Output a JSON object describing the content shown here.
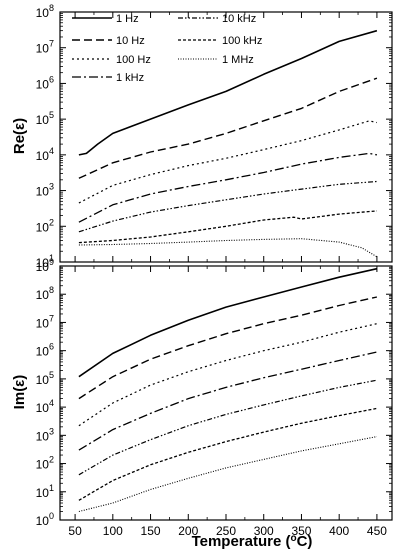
{
  "chart_data": [
    {
      "type": "line",
      "ylabel": "Re(ε)",
      "yscale": "log",
      "ylim_exp": [
        1,
        8
      ],
      "y_tick_labels": [
        {
          "base": "10",
          "exp": "1"
        },
        {
          "base": "10",
          "exp": "2"
        },
        {
          "base": "10",
          "exp": "3"
        },
        {
          "base": "10",
          "exp": "4"
        },
        {
          "base": "10",
          "exp": "5"
        },
        {
          "base": "10",
          "exp": "6"
        },
        {
          "base": "10",
          "exp": "7"
        },
        {
          "base": "10",
          "exp": "8"
        }
      ],
      "xlim": [
        30,
        470
      ],
      "grid": false,
      "legend": "top-left, two columns",
      "series": [
        {
          "name": "1 Hz",
          "dash": "solid",
          "width": 1.6,
          "x": [
            55,
            65,
            80,
            100,
            150,
            200,
            250,
            300,
            350,
            400,
            450
          ],
          "y": [
            10000,
            11000,
            20000,
            40000,
            100000,
            250000,
            600000,
            1800000,
            5000000,
            15000000,
            30000000
          ]
        },
        {
          "name": "10 Hz",
          "dash": "8,4",
          "width": 1.4,
          "x": [
            55,
            100,
            150,
            200,
            250,
            300,
            350,
            400,
            450
          ],
          "y": [
            2200,
            6000,
            12000,
            20000,
            40000,
            90000,
            200000,
            600000,
            1400000
          ]
        },
        {
          "name": "100 Hz",
          "dash": "2,3",
          "width": 1.2,
          "x": [
            55,
            100,
            150,
            200,
            250,
            300,
            350,
            400,
            440,
            450
          ],
          "y": [
            450,
            1400,
            2800,
            5000,
            8000,
            14000,
            25000,
            50000,
            90000,
            80000
          ]
        },
        {
          "name": "1 kHz",
          "dash": "9,3,2,3",
          "width": 1.3,
          "x": [
            55,
            100,
            150,
            200,
            250,
            300,
            350,
            400,
            440,
            450
          ],
          "y": [
            130,
            400,
            800,
            1300,
            2000,
            3200,
            5500,
            8500,
            11000,
            10000
          ]
        },
        {
          "name": "10 kHz",
          "dash": "5,2,1.5,2,1.5,2",
          "width": 1.2,
          "x": [
            55,
            100,
            150,
            200,
            250,
            300,
            350,
            400,
            450
          ],
          "y": [
            70,
            140,
            250,
            380,
            550,
            800,
            1100,
            1500,
            1800
          ]
        },
        {
          "name": "100 kHz",
          "dash": "3,2",
          "width": 1.3,
          "x": [
            55,
            100,
            150,
            200,
            250,
            300,
            340,
            350,
            400,
            450
          ],
          "y": [
            35,
            40,
            50,
            70,
            100,
            150,
            180,
            160,
            220,
            270
          ]
        },
        {
          "name": "1 MHz",
          "dash": "1,1.5",
          "width": 1.1,
          "x": [
            55,
            100,
            150,
            200,
            250,
            300,
            350,
            400,
            430,
            450
          ],
          "y": [
            30,
            31,
            33,
            36,
            40,
            43,
            45,
            36,
            25,
            14
          ]
        }
      ]
    },
    {
      "type": "line",
      "ylabel": "Im(ε)",
      "yscale": "log",
      "ylim_exp": [
        0,
        9
      ],
      "y_tick_labels": [
        {
          "base": "10",
          "exp": "0"
        },
        {
          "base": "10",
          "exp": "1"
        },
        {
          "base": "10",
          "exp": "2"
        },
        {
          "base": "10",
          "exp": "3"
        },
        {
          "base": "10",
          "exp": "4"
        },
        {
          "base": "10",
          "exp": "5"
        },
        {
          "base": "10",
          "exp": "6"
        },
        {
          "base": "10",
          "exp": "7"
        },
        {
          "base": "10",
          "exp": "8"
        },
        {
          "base": "10",
          "exp": "9"
        }
      ],
      "xlabel": {
        "text": "Temperature (",
        "sup": "o",
        "unit": "C)"
      },
      "x_ticks": [
        50,
        100,
        150,
        200,
        250,
        300,
        350,
        400,
        450
      ],
      "x_tick_labels": [
        "50",
        "100",
        "150",
        "200",
        "250",
        "300",
        "350",
        "400",
        "450"
      ],
      "xlim": [
        30,
        470
      ],
      "grid": false,
      "series": [
        {
          "name": "1 Hz",
          "dash": "solid",
          "width": 1.6,
          "x": [
            55,
            100,
            150,
            200,
            250,
            300,
            350,
            400,
            450
          ],
          "y": [
            120000,
            800000,
            3500000,
            12000000,
            35000000,
            80000000,
            180000000,
            400000000,
            800000000
          ]
        },
        {
          "name": "10 Hz",
          "dash": "8,4",
          "width": 1.4,
          "x": [
            55,
            100,
            150,
            200,
            250,
            300,
            350,
            400,
            450
          ],
          "y": [
            20000,
            120000,
            500000,
            1500000,
            4000000,
            9000000,
            18000000,
            40000000,
            80000000
          ]
        },
        {
          "name": "100 Hz",
          "dash": "2,3",
          "width": 1.2,
          "x": [
            55,
            100,
            150,
            200,
            250,
            300,
            350,
            400,
            450
          ],
          "y": [
            2200,
            14000,
            60000,
            180000,
            450000,
            1000000,
            2000000,
            4500000,
            9000000
          ]
        },
        {
          "name": "1 kHz",
          "dash": "9,3,2,3",
          "width": 1.3,
          "x": [
            55,
            100,
            150,
            200,
            250,
            300,
            350,
            400,
            450
          ],
          "y": [
            300,
            1600,
            6000,
            20000,
            50000,
            110000,
            220000,
            450000,
            900000
          ]
        },
        {
          "name": "10 kHz",
          "dash": "5,2,1.5,2,1.5,2",
          "width": 1.2,
          "x": [
            55,
            100,
            150,
            200,
            250,
            300,
            350,
            400,
            450
          ],
          "y": [
            40,
            200,
            700,
            2200,
            5500,
            12000,
            25000,
            50000,
            90000
          ]
        },
        {
          "name": "100 kHz",
          "dash": "3,2",
          "width": 1.3,
          "x": [
            55,
            100,
            150,
            200,
            250,
            300,
            350,
            400,
            450
          ],
          "y": [
            5,
            25,
            90,
            250,
            600,
            1300,
            2700,
            5000,
            9000
          ]
        },
        {
          "name": "1 MHz",
          "dash": "1,1.5",
          "width": 1.1,
          "x": [
            55,
            100,
            150,
            200,
            250,
            300,
            350,
            400,
            450
          ],
          "y": [
            2,
            4,
            12,
            30,
            70,
            140,
            280,
            500,
            900
          ]
        }
      ]
    }
  ]
}
